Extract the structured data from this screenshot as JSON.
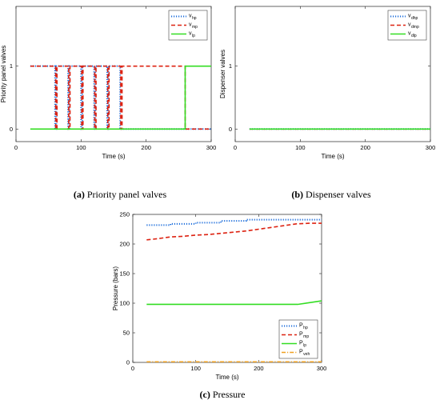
{
  "chart_data": [
    {
      "id": "a",
      "type": "line",
      "caption_letter": "(a)",
      "caption_text": " Priority panel valves",
      "xlabel": "Time (s)",
      "ylabel": "Priority panel valves",
      "xlim": [
        0,
        300
      ],
      "ylim": [
        -0.2,
        1.95
      ],
      "xticks": [
        0,
        100,
        200,
        300
      ],
      "yticks": [
        0,
        1
      ],
      "legend_position": "top-right",
      "grid": false,
      "series": [
        {
          "name": "v",
          "sub": "hp",
          "color": "#1f6fdb",
          "dash": "dotted",
          "x": [
            22,
            60,
            60,
            62,
            62,
            80,
            80,
            82,
            82,
            100,
            100,
            102,
            102,
            120,
            120,
            122,
            122,
            140,
            140,
            142,
            142,
            160,
            160,
            162,
            162,
            260,
            260,
            300
          ],
          "y": [
            1,
            1,
            0,
            0,
            1,
            1,
            0,
            0,
            1,
            1,
            0,
            0,
            1,
            1,
            0,
            0,
            1,
            1,
            0,
            0,
            1,
            1,
            0,
            0,
            0,
            0,
            0,
            0
          ]
        },
        {
          "name": "v",
          "sub": "mp",
          "color": "#dd2211",
          "dash": "dashed",
          "x": [
            22,
            61,
            61,
            63,
            63,
            81,
            81,
            83,
            83,
            101,
            101,
            103,
            103,
            121,
            121,
            123,
            123,
            141,
            141,
            143,
            143,
            161,
            161,
            163,
            163,
            260,
            260,
            300
          ],
          "y": [
            1,
            1,
            0,
            0,
            1,
            1,
            0,
            0,
            1,
            1,
            0,
            0,
            1,
            1,
            0,
            0,
            1,
            1,
            0,
            0,
            1,
            1,
            0,
            0,
            1,
            1,
            0,
            0
          ]
        },
        {
          "name": "v",
          "sub": "lp",
          "color": "#33dd22",
          "dash": "solid",
          "x": [
            22,
            260,
            260,
            300
          ],
          "y": [
            0,
            0,
            1,
            1
          ]
        }
      ]
    },
    {
      "id": "b",
      "type": "line",
      "caption_letter": "(b)",
      "caption_text": " Dispenser valves",
      "xlabel": "Time (s)",
      "ylabel": "Dispenser valves",
      "xlim": [
        0,
        300
      ],
      "ylim": [
        -0.2,
        1.95
      ],
      "xticks": [
        0,
        100,
        200,
        300
      ],
      "yticks": [
        0,
        1
      ],
      "legend_position": "top-right",
      "grid": false,
      "series": [
        {
          "name": "v",
          "sub": "dhp",
          "color": "#1f6fdb",
          "dash": "dotted",
          "x": [
            22,
            300
          ],
          "y": [
            0,
            0
          ]
        },
        {
          "name": "v",
          "sub": "dmp",
          "color": "#dd2211",
          "dash": "dashed",
          "x": [
            22,
            300
          ],
          "y": [
            0,
            0
          ]
        },
        {
          "name": "v",
          "sub": "dlp",
          "color": "#33dd22",
          "dash": "solid",
          "x": [
            22,
            300
          ],
          "y": [
            0,
            0
          ]
        }
      ]
    },
    {
      "id": "c",
      "type": "line",
      "caption_letter": "(c)",
      "caption_text": " Pressure",
      "xlabel": "Time (s)",
      "ylabel": "Pressure (bars)",
      "xlim": [
        0,
        300
      ],
      "ylim": [
        0,
        250
      ],
      "xticks": [
        0,
        100,
        200,
        300
      ],
      "yticks": [
        0,
        50,
        100,
        150,
        200,
        250
      ],
      "legend_position": "bottom-right",
      "grid": false,
      "series": [
        {
          "name": "P",
          "sub": "hp",
          "color": "#1f6fdb",
          "dash": "dotted",
          "x": [
            22,
            60,
            60,
            100,
            100,
            140,
            140,
            180,
            180,
            300
          ],
          "y": [
            232,
            232,
            234,
            234,
            236,
            236,
            239,
            239,
            241,
            241
          ]
        },
        {
          "name": "P",
          "sub": "mp",
          "color": "#dd2211",
          "dash": "dashed",
          "x": [
            22,
            40,
            60,
            80,
            100,
            120,
            140,
            160,
            180,
            200,
            220,
            240,
            260,
            280,
            300
          ],
          "y": [
            207,
            209,
            212,
            213,
            215,
            216,
            218,
            220,
            222,
            225,
            228,
            231,
            234,
            235,
            235
          ]
        },
        {
          "name": "P",
          "sub": "lp",
          "color": "#33dd22",
          "dash": "solid",
          "x": [
            22,
            262,
            300
          ],
          "y": [
            98,
            98,
            104
          ]
        },
        {
          "name": "P",
          "sub": "veh",
          "color": "#f0a020",
          "dash": "dashdot",
          "x": [
            22,
            300
          ],
          "y": [
            1,
            1
          ]
        }
      ]
    }
  ]
}
